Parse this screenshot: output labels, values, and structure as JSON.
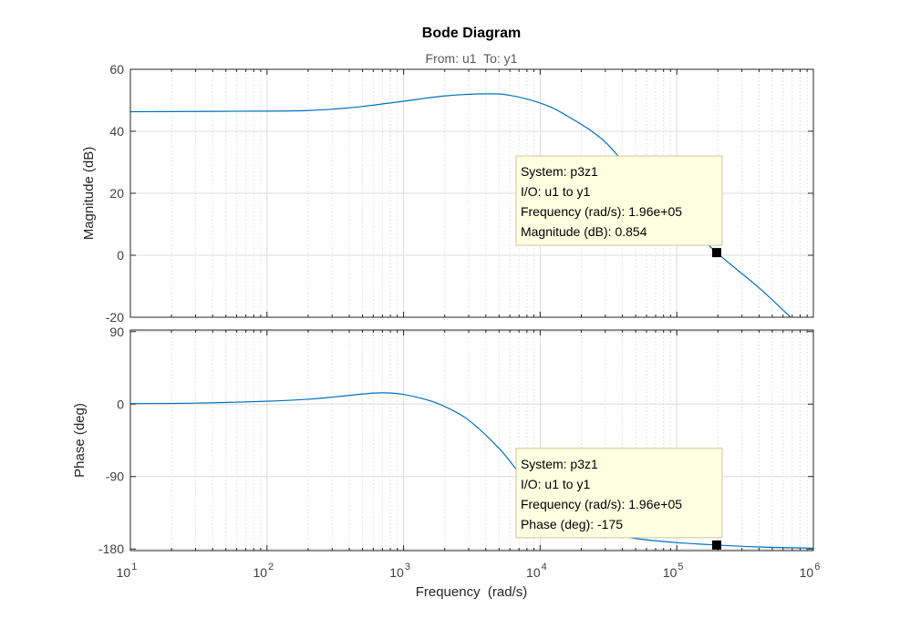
{
  "chart_data": {
    "type": "line",
    "title": "Bode Diagram",
    "subtitle": "From: u1  To: y1",
    "xlabel": "Frequency  (rad/s)",
    "xscale": "log",
    "xlim": [
      10,
      1000000
    ],
    "x_ticks": [
      {
        "base": "10",
        "exp": "1"
      },
      {
        "base": "10",
        "exp": "2"
      },
      {
        "base": "10",
        "exp": "3"
      },
      {
        "base": "10",
        "exp": "4"
      },
      {
        "base": "10",
        "exp": "5"
      },
      {
        "base": "10",
        "exp": "6"
      }
    ],
    "series_color": "#0072bd",
    "grid": true,
    "panels": [
      {
        "id": "magnitude",
        "ylabel": "Magnitude (dB)",
        "ylim": [
          -20,
          60
        ],
        "y_ticks": [
          "60",
          "40",
          "20",
          "0",
          "-20"
        ],
        "y_tick_values": [
          60,
          40,
          20,
          0,
          -20
        ],
        "series": [
          {
            "points": [
              [
                10,
                46.3
              ],
              [
                30,
                46.4
              ],
              [
                100,
                46.5
              ],
              [
                200,
                46.7
              ],
              [
                316,
                47.2
              ],
              [
                500,
                48.0
              ],
              [
                1000,
                49.7
              ],
              [
                2000,
                51.4
              ],
              [
                4000,
                52.1
              ],
              [
                6000,
                51.6
              ],
              [
                10000,
                49.1
              ],
              [
                15000,
                45.5
              ],
              [
                30000,
                36.5
              ],
              [
                60000,
                21.0
              ],
              [
                100000,
                13.0
              ],
              [
                196000,
                0.854
              ],
              [
                400000,
                -10.5
              ],
              [
                700000,
                -20.5
              ]
            ]
          }
        ],
        "datatip": {
          "x": 196000,
          "y": 0.854,
          "lines": [
            "System: p3z1",
            "I/O: u1 to y1",
            "Frequency (rad/s): 1.96e+05",
            "Magnitude (dB): 0.854"
          ]
        }
      },
      {
        "id": "phase",
        "ylabel": "Phase (deg)",
        "ylim": [
          -182,
          92
        ],
        "y_ticks": [
          "90",
          "0",
          "-90",
          "-180"
        ],
        "y_tick_values": [
          90,
          0,
          -90,
          -180
        ],
        "series": [
          {
            "points": [
              [
                10,
                0.6
              ],
              [
                30,
                1.2
              ],
              [
                100,
                3.5
              ],
              [
                200,
                6.0
              ],
              [
                316,
                9.0
              ],
              [
                500,
                12.5
              ],
              [
                700,
                14.0
              ],
              [
                1000,
                12.0
              ],
              [
                1500,
                5.0
              ],
              [
                2000,
                -3.0
              ],
              [
                3000,
                -20.0
              ],
              [
                5000,
                -55.0
              ],
              [
                7000,
                -85.0
              ],
              [
                10000,
                -112.0
              ],
              [
                15000,
                -138.0
              ],
              [
                20000,
                -150.0
              ],
              [
                30000,
                -160.0
              ],
              [
                50000,
                -167.0
              ],
              [
                100000,
                -172.0
              ],
              [
                196000,
                -175.0
              ],
              [
                400000,
                -177.5
              ],
              [
                1000000,
                -179.0
              ]
            ]
          }
        ],
        "datatip": {
          "x": 196000,
          "y": -175,
          "lines": [
            "System: p3z1",
            "I/O: u1 to y1",
            "Frequency (rad/s): 1.96e+05",
            "Phase (deg): -175"
          ]
        }
      }
    ]
  }
}
